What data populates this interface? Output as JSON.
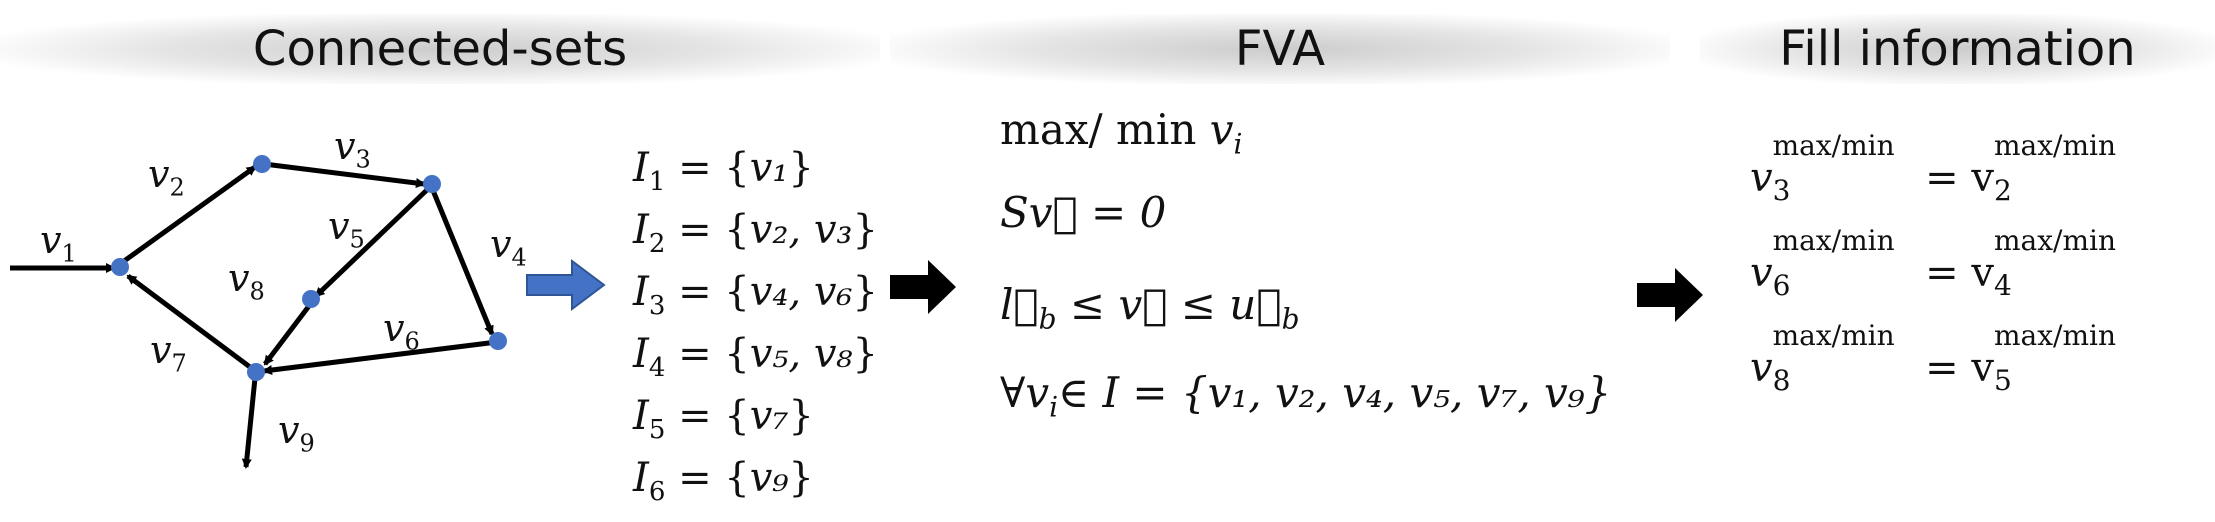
{
  "headers": {
    "connected_sets": "Connected-sets",
    "fva": "FVA",
    "fill_information": "Fill information"
  },
  "graph": {
    "edge_labels": [
      {
        "name": "v",
        "sub": "1"
      },
      {
        "name": "v",
        "sub": "2"
      },
      {
        "name": "v",
        "sub": "3"
      },
      {
        "name": "v",
        "sub": "4"
      },
      {
        "name": "v",
        "sub": "5"
      },
      {
        "name": "v",
        "sub": "6"
      },
      {
        "name": "v",
        "sub": "7"
      },
      {
        "name": "v",
        "sub": "8"
      },
      {
        "name": "v",
        "sub": "9"
      }
    ],
    "node_color": "#4472C4",
    "edge_color": "#000000"
  },
  "sets": [
    {
      "name": "I",
      "sub": "1",
      "eq": " = {",
      "members": "v₁",
      "close": "}"
    },
    {
      "name": "I",
      "sub": "2",
      "eq": " = {",
      "members": "v₂, v₃",
      "close": "}"
    },
    {
      "name": "I",
      "sub": "3",
      "eq": " = {",
      "members": "v₄, v₆",
      "close": "}"
    },
    {
      "name": "I",
      "sub": "4",
      "eq": " = {",
      "members": "v₅, v₈",
      "close": "}"
    },
    {
      "name": "I",
      "sub": "5",
      "eq": " = {",
      "members": "v₇",
      "close": "}"
    },
    {
      "name": "I",
      "sub": "6",
      "eq": " = {",
      "members": "v₉",
      "close": "}"
    }
  ],
  "fva": {
    "objective": "max/ min ",
    "objective_var": "v",
    "objective_sub": "i",
    "constraint1": "Sv⃗ = 0",
    "constraint2_lhs": "l⃗",
    "constraint2_lhs_sub": "b",
    "constraint2_mid": " ≤ v⃗ ≤ ",
    "constraint2_rhs": "u⃗",
    "constraint2_rhs_sub": "b",
    "condition": "∀v",
    "condition_sub": "i",
    "condition_rest": "∈ I = {v₁, v₂, v₄, v₅, v₇, v₉}"
  },
  "fill": [
    {
      "lhs": "v",
      "lhs_sub": "3",
      "sup": "max/min",
      "eq": " = v",
      "rhs_sub": "2",
      "rhs_sup": "max/min"
    },
    {
      "lhs": "v",
      "lhs_sub": "6",
      "sup": "max/min",
      "eq": " = v",
      "rhs_sub": "4",
      "rhs_sup": "max/min"
    },
    {
      "lhs": "v",
      "lhs_sub": "8",
      "sup": "max/min",
      "eq": " = v",
      "rhs_sub": "5",
      "rhs_sup": "max/min"
    }
  ],
  "colors": {
    "arrow_blue": "#4472C4",
    "arrow_black": "#000000"
  }
}
